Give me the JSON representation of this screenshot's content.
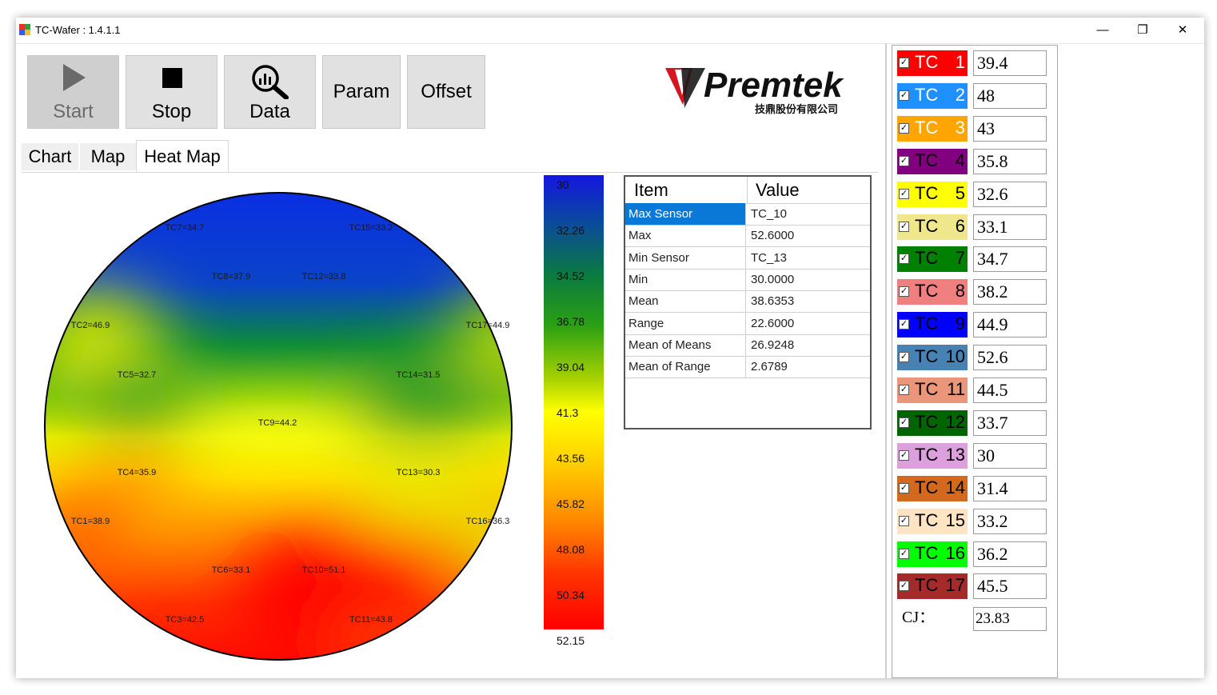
{
  "window": {
    "title": "TC-Wafer : 1.4.1.1",
    "minimize": "—",
    "restore": "❐",
    "close": "✕"
  },
  "toolbar": {
    "start": "Start",
    "stop": "Stop",
    "data": "Data",
    "param": "Param",
    "offset": "Offset"
  },
  "logo": {
    "brand": "Premtek",
    "subtitle": "技鼎股份有限公司"
  },
  "tabs": {
    "chart": "Chart",
    "map": "Map",
    "heat_map": "Heat Map"
  },
  "heatmap": {
    "labels": [
      "TC7=34.7",
      "TC15=33.2",
      "TC8=37.9",
      "TC12=33.8",
      "TC2=46.9",
      "TC17=44.9",
      "TC5=32.7",
      "TC14=31.5",
      "TC9=44.2",
      "TC4=35.9",
      "TC13=30.3",
      "TC1=38.9",
      "TC16=36.3",
      "TC6=33.1",
      "TC10=51.1",
      "TC3=42.5",
      "TC11=43.8"
    ],
    "scale": [
      "30",
      "32.26",
      "34.52",
      "36.78",
      "39.04",
      "41.3",
      "43.56",
      "45.82",
      "48.08",
      "50.34",
      "52.15"
    ]
  },
  "stats": {
    "header_item": "Item",
    "header_value": "Value",
    "rows": [
      [
        "Max Sensor",
        "TC_10"
      ],
      [
        "Max",
        "52.6000"
      ],
      [
        "Min Sensor",
        "TC_13"
      ],
      [
        "Min",
        "30.0000"
      ],
      [
        "Mean",
        "38.6353"
      ],
      [
        "Range",
        "22.6000"
      ],
      [
        "Mean of Means",
        "26.9248"
      ],
      [
        "Mean of Range",
        "2.6789"
      ]
    ]
  },
  "channels": [
    {
      "name": "TC",
      "num": "1",
      "value": "39.4",
      "bg": "#ff0000",
      "fg": "#ffffff"
    },
    {
      "name": "TC",
      "num": "2",
      "value": "48",
      "bg": "#1e90ff",
      "fg": "#ffffff"
    },
    {
      "name": "TC",
      "num": "3",
      "value": "43",
      "bg": "#ffa500",
      "fg": "#ffffff"
    },
    {
      "name": "TC",
      "num": "4",
      "value": "35.8",
      "bg": "#800080",
      "fg": "#000000"
    },
    {
      "name": "TC",
      "num": "5",
      "value": "32.6",
      "bg": "#ffff00",
      "fg": "#000000"
    },
    {
      "name": "TC",
      "num": "6",
      "value": "33.1",
      "bg": "#f0e68c",
      "fg": "#000000"
    },
    {
      "name": "TC",
      "num": "7",
      "value": "34.7",
      "bg": "#008000",
      "fg": "#000000"
    },
    {
      "name": "TC",
      "num": "8",
      "value": "38.2",
      "bg": "#f08080",
      "fg": "#000000"
    },
    {
      "name": "TC",
      "num": "9",
      "value": "44.9",
      "bg": "#0000ff",
      "fg": "#000000"
    },
    {
      "name": "TC",
      "num": "10",
      "value": "52.6",
      "bg": "#4682b4",
      "fg": "#000000"
    },
    {
      "name": "TC",
      "num": "11",
      "value": "44.5",
      "bg": "#e9967a",
      "fg": "#000000"
    },
    {
      "name": "TC",
      "num": "12",
      "value": "33.7",
      "bg": "#006400",
      "fg": "#000000"
    },
    {
      "name": "TC",
      "num": "13",
      "value": "30",
      "bg": "#dda0dd",
      "fg": "#000000"
    },
    {
      "name": "TC",
      "num": "14",
      "value": "31.4",
      "bg": "#d2691e",
      "fg": "#000000"
    },
    {
      "name": "TC",
      "num": "15",
      "value": "33.2",
      "bg": "#ffe4c4",
      "fg": "#000000"
    },
    {
      "name": "TC",
      "num": "16",
      "value": "36.2",
      "bg": "#00ff00",
      "fg": "#000000"
    },
    {
      "name": "TC",
      "num": "17",
      "value": "45.5",
      "bg": "#a52a2a",
      "fg": "#000000"
    }
  ],
  "cj": {
    "label": "CJ：",
    "value": "23.83"
  },
  "icons": {
    "start": "play-icon",
    "stop": "stop-square-icon",
    "data": "magnifier-chart-icon",
    "check": "checkbox-checked-icon"
  }
}
